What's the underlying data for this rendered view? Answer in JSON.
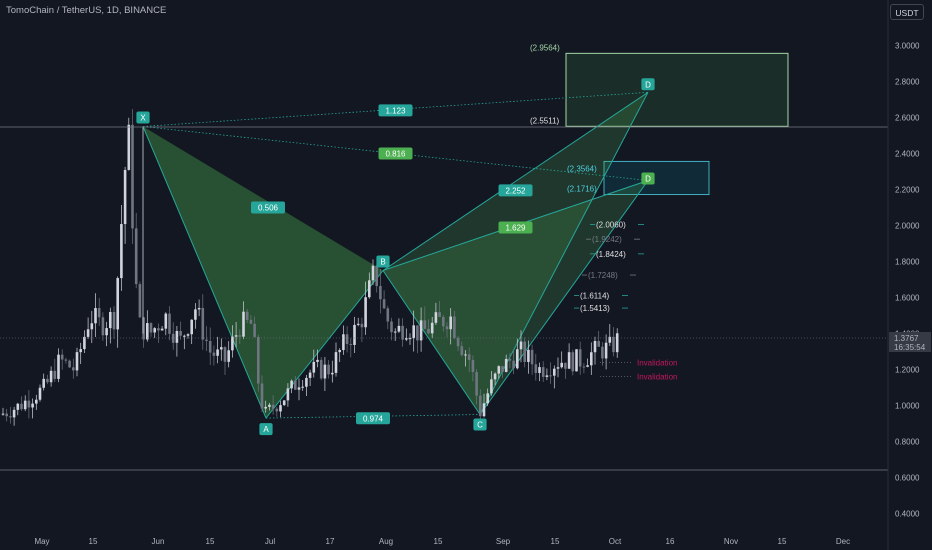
{
  "header": {
    "title": "TomoChain / TetherUS, 1D, BINANCE",
    "currency": "USDT"
  },
  "colors": {
    "background": "#131722",
    "up": "#d1d4dc",
    "down": "#707582",
    "pattern_fill": "#4caf50",
    "pattern_line": "#26a69a",
    "invalidation": "#c2185b"
  },
  "chart_data": {
    "type": "candlestick",
    "title": "TomoChain / TetherUS, 1D, BINANCE",
    "ylim": [
      0.3,
      3.1
    ],
    "y_ticks": [
      "3.0000",
      "2.8000",
      "2.6000",
      "2.4000",
      "2.2000",
      "2.0000",
      "1.8000",
      "1.6000",
      "1.4000",
      "1.2000",
      "1.0000",
      "0.8000",
      "0.6000",
      "0.4000"
    ],
    "x_ticks": [
      "May",
      "15",
      "Jun",
      "15",
      "Jul",
      "17",
      "Aug",
      "15",
      "Sep",
      "15",
      "Oct",
      "16",
      "Nov",
      "15",
      "Dec"
    ],
    "last_price": "1.3767",
    "countdown": "16:35:54",
    "grid": false,
    "candles_close_path": [
      [
        0.8,
        0.95
      ],
      [
        20,
        1.0
      ],
      [
        45,
        1.1
      ],
      [
        60,
        1.25
      ],
      [
        75,
        1.2
      ],
      [
        90,
        1.5
      ],
      [
        100,
        1.45
      ],
      [
        115,
        1.5
      ],
      [
        128,
        2.55
      ],
      [
        138,
        1.45
      ],
      [
        150,
        1.4
      ],
      [
        165,
        1.5
      ],
      [
        180,
        1.35
      ],
      [
        195,
        1.55
      ],
      [
        210,
        1.3
      ],
      [
        225,
        1.25
      ],
      [
        240,
        1.45
      ],
      [
        252,
        1.45
      ],
      [
        260,
        1.05
      ],
      [
        265,
        0.95
      ],
      [
        285,
        1.05
      ],
      [
        300,
        1.15
      ],
      [
        315,
        1.2
      ],
      [
        330,
        1.2
      ],
      [
        345,
        1.35
      ],
      [
        360,
        1.45
      ],
      [
        375,
        1.75
      ],
      [
        385,
        1.5
      ],
      [
        395,
        1.4
      ],
      [
        405,
        1.45
      ],
      [
        420,
        1.4
      ],
      [
        435,
        1.45
      ],
      [
        450,
        1.5
      ],
      [
        460,
        1.35
      ],
      [
        470,
        1.25
      ],
      [
        480,
        0.96
      ],
      [
        490,
        1.1
      ],
      [
        500,
        1.2
      ],
      [
        510,
        1.25
      ],
      [
        520,
        1.3
      ],
      [
        530,
        1.25
      ],
      [
        540,
        1.2
      ],
      [
        560,
        1.25
      ],
      [
        580,
        1.25
      ],
      [
        595,
        1.3
      ],
      [
        610,
        1.32
      ],
      [
        620,
        1.3767
      ]
    ],
    "harmonic_pattern": {
      "points": [
        {
          "label": "X",
          "price": 2.55
        },
        {
          "label": "A",
          "price": 0.93
        },
        {
          "label": "B",
          "price": 1.75
        },
        {
          "label": "C",
          "price": 0.95
        },
        {
          "label": "D",
          "price": 2.74
        },
        {
          "label": "D",
          "price": 2.25
        }
      ],
      "ratios": [
        "0.506",
        "0.974",
        "2.252",
        "1.629",
        "1.123",
        "0.816"
      ],
      "targets": [
        {
          "label": "(2.9564)",
          "price": 2.9564
        },
        {
          "label": "(2.5511)",
          "price": 2.5511
        },
        {
          "label": "(2.3564)",
          "price": 2.3564
        },
        {
          "label": "(2.1716)",
          "price": 2.1716
        },
        {
          "label": "(2.0060)",
          "price": 2.006
        },
        {
          "label": "(1.9242)",
          "price": 1.9242
        },
        {
          "label": "(1.8424)",
          "price": 1.8424
        },
        {
          "label": "(1.7248)",
          "price": 1.7248
        },
        {
          "label": "(1.6114)",
          "price": 1.6114
        },
        {
          "label": "(1.5413)",
          "price": 1.5413
        }
      ],
      "invalidation_label": "Invalidation"
    }
  }
}
